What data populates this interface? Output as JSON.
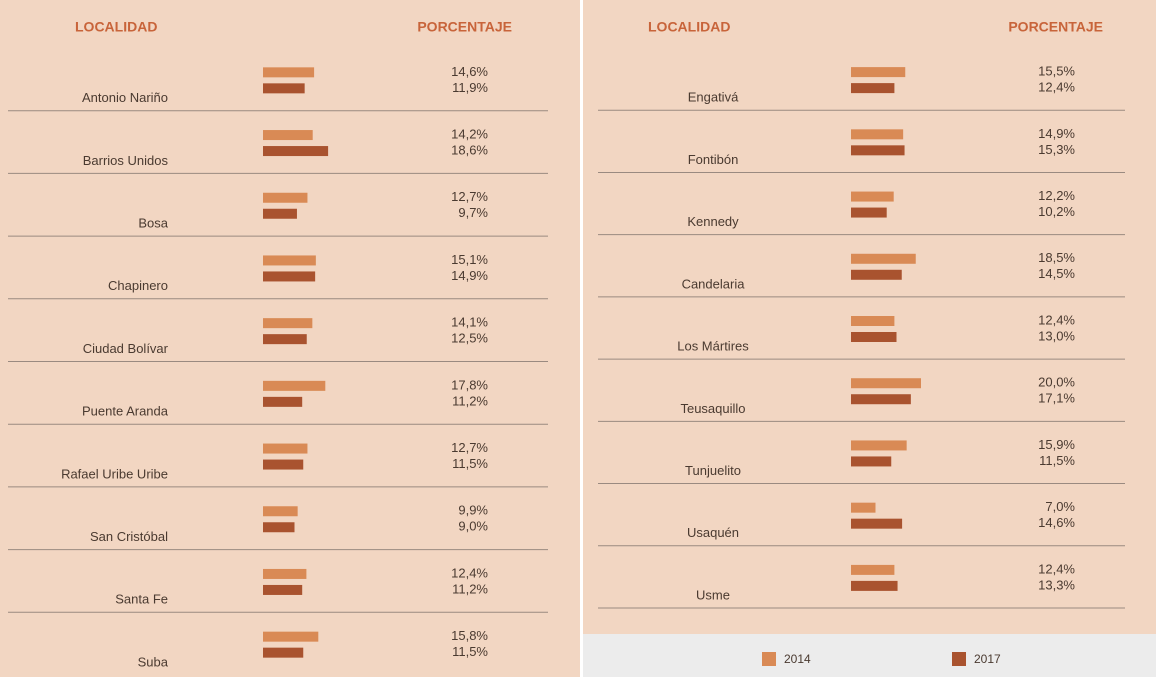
{
  "chart_data": [
    {
      "type": "bar",
      "category_header": "LOCALIDAD",
      "value_header": "PORCENTAJE",
      "categories": [
        "Antonio Nariño",
        "Barrios Unidos",
        "Bosa",
        "Chapinero",
        "Ciudad Bolívar",
        "Puente Aranda",
        "Rafael Uribe Uribe",
        "San Cristóbal",
        "Santa Fe",
        "Suba"
      ],
      "series": [
        {
          "color": "#d98a55",
          "values": [
            14.6,
            14.2,
            12.7,
            15.1,
            14.1,
            17.8,
            12.7,
            9.9,
            12.4,
            15.8
          ],
          "value_labels": [
            "14,6%",
            "14,2%",
            "12,7%",
            "15,1%",
            "14,1%",
            "17,8%",
            "12,7%",
            "9,9%",
            "12,4%",
            "15,8%"
          ]
        },
        {
          "color": "#a9532f",
          "values": [
            11.9,
            18.6,
            9.7,
            14.9,
            12.5,
            11.2,
            11.5,
            9.0,
            11.2,
            11.5
          ],
          "value_labels": [
            "11,9%",
            "18,6%",
            "9,7%",
            "14,9%",
            "12,5%",
            "11,2%",
            "11,5%",
            "9,0%",
            "11,2%",
            "11,5%"
          ]
        }
      ]
    },
    {
      "type": "bar",
      "category_header": "LOCALIDAD",
      "value_header": "PORCENTAJE",
      "categories": [
        "Engativá",
        "Fontibón",
        "Kennedy",
        "Candelaria",
        "Los Mártires",
        "Teusaquillo",
        "Tunjuelito",
        "Usaquén",
        "Usme"
      ],
      "series": [
        {
          "name": "2014",
          "color": "#d98a55",
          "values": [
            15.5,
            14.9,
            12.2,
            18.5,
            12.4,
            20.0,
            15.9,
            7.0,
            12.4
          ],
          "value_labels": [
            "15,5%",
            "14,9%",
            "12,2%",
            "18,5%",
            "12,4%",
            "20,0%",
            "15,9%",
            "7,0%",
            "12,4%"
          ]
        },
        {
          "name": "2017",
          "color": "#a9532f",
          "values": [
            12.4,
            15.3,
            10.2,
            14.5,
            13.0,
            17.1,
            11.5,
            14.6,
            13.3
          ],
          "value_labels": [
            "12,4%",
            "15,3%",
            "10,2%",
            "14,5%",
            "13,0%",
            "17,1%",
            "11,5%",
            "14,6%",
            "13,3%"
          ]
        }
      ]
    }
  ]
}
